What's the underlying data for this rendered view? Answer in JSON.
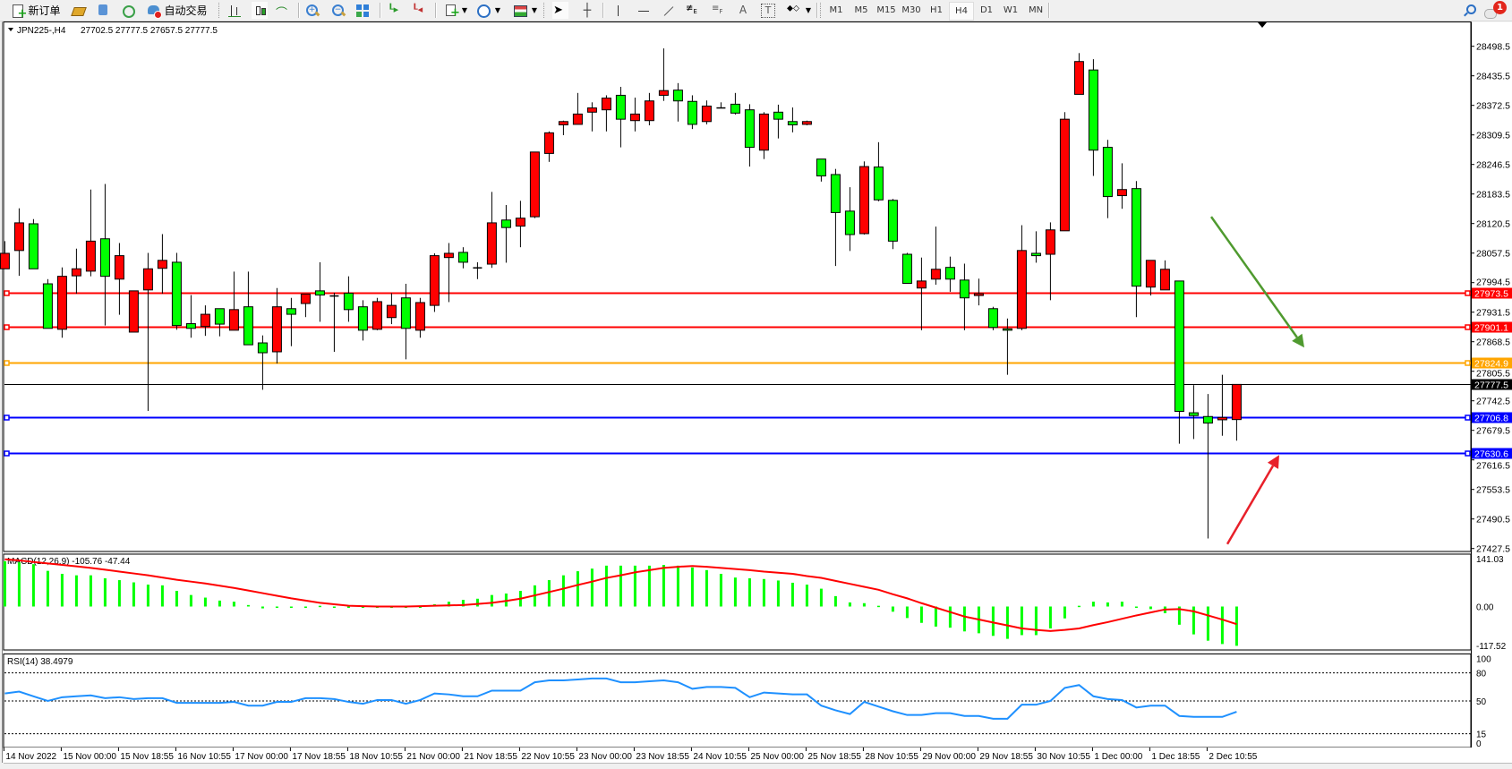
{
  "toolbar": {
    "new_order_label": "新订单",
    "auto_trading_label": "自动交易",
    "icons": [
      "new-order-icon",
      "market-watch-icon",
      "data-window-icon",
      "navigator-icon",
      "auto-trading-icon",
      "bar-chart-icon",
      "candlestick-chart-icon",
      "line-chart-icon",
      "zoom-in-icon",
      "zoom-out-icon",
      "tile-windows-icon",
      "chart-shift-icon",
      "auto-scroll-icon",
      "indicators-icon",
      "periods-icon",
      "templates-icon",
      "cursor-icon",
      "crosshair-icon",
      "vertical-line-icon",
      "horizontal-line-icon",
      "trendline-icon",
      "fibonacci-expansion-icon",
      "fibonacci-fan-icon",
      "text-icon",
      "text-label-icon",
      "arrows-icon",
      "search-icon",
      "notifications-icon"
    ],
    "periods": [
      "M1",
      "M5",
      "M15",
      "M30",
      "H1",
      "H4",
      "D1",
      "W1",
      "MN"
    ],
    "active_period": "H4"
  },
  "notifications": {
    "count": "1"
  },
  "chart": {
    "symbol_timeframe": "JPN225-,H4",
    "ohlc_readout": "27702.5 27777.5 27657.5 27777.5"
  },
  "colors": {
    "bull_candle": "#ff0000",
    "bear_candle": "#00ff00",
    "macd_histogram": "#00ff00",
    "macd_signal": "#ff0000",
    "rsi_line": "#1e90ff",
    "down_arrow": "#4f9a2f",
    "up_arrow": "#e8202a"
  },
  "chart_data": {
    "type": "candlestick",
    "price_axis_ticks": [
      "28498.5",
      "28435.5",
      "28372.5",
      "28309.5",
      "28246.5",
      "28183.5",
      "28120.5",
      "28057.5",
      "27994.5",
      "27931.5",
      "27868.5",
      "27805.5",
      "27742.5",
      "27679.5",
      "27616.5",
      "27553.5",
      "27490.5",
      "27427.5"
    ],
    "time_labels": [
      "14 Nov 2022",
      "15 Nov 00:00",
      "15 Nov 18:55",
      "16 Nov 10:55",
      "17 Nov 00:00",
      "17 Nov 18:55",
      "18 Nov 10:55",
      "21 Nov 00:00",
      "21 Nov 18:55",
      "22 Nov 10:55",
      "23 Nov 00:00",
      "23 Nov 18:55",
      "24 Nov 10:55",
      "25 Nov 00:00",
      "25 Nov 18:55",
      "28 Nov 10:55",
      "29 Nov 00:00",
      "29 Nov 18:55",
      "30 Nov 10:55",
      "1 Dec 00:00",
      "1 Dec 18:55",
      "2 Dec 10:55"
    ],
    "candles_ohlc": [
      [
        28024,
        28083,
        28024,
        28057
      ],
      [
        28063,
        28153,
        28009,
        28122
      ],
      [
        28120,
        28130,
        28024,
        28024
      ],
      [
        27992,
        28002,
        27897,
        27897
      ],
      [
        27895,
        28027,
        27877,
        28008
      ],
      [
        28009,
        28067,
        27971,
        28024
      ],
      [
        28019,
        28193,
        28008,
        28083
      ],
      [
        28088,
        28205,
        27903,
        28008
      ],
      [
        28002,
        28079,
        27926,
        28052
      ],
      [
        27889,
        27977,
        27889,
        27977
      ],
      [
        27979,
        28058,
        27721,
        28024
      ],
      [
        28025,
        28098,
        27971,
        28042
      ],
      [
        28038,
        28058,
        27894,
        27903
      ],
      [
        27907,
        27968,
        27877,
        27897
      ],
      [
        27901,
        27946,
        27881,
        27927
      ],
      [
        27939,
        27939,
        27880,
        27906
      ],
      [
        27893,
        28018,
        27893,
        27937
      ],
      [
        27943,
        28018,
        27862,
        27862
      ],
      [
        27866,
        27882,
        27766,
        27845
      ],
      [
        27847,
        27983,
        27822,
        27943
      ],
      [
        27939,
        27962,
        27859,
        27927
      ],
      [
        27950,
        27970,
        27921,
        27970
      ],
      [
        27977,
        28038,
        27911,
        27968
      ],
      [
        27966,
        27973,
        27847,
        27966
      ],
      [
        27972,
        28008,
        27911,
        27937
      ],
      [
        27943,
        27957,
        27871,
        27893
      ],
      [
        27895,
        27962,
        27893,
        27954
      ],
      [
        27920,
        27972,
        27906,
        27946
      ],
      [
        27962,
        27992,
        27831,
        27897
      ],
      [
        27893,
        27962,
        27877,
        27952
      ],
      [
        27946,
        28057,
        27932,
        28052
      ],
      [
        28048,
        28079,
        27953,
        28057
      ],
      [
        28059,
        28070,
        28025,
        28038
      ],
      [
        28026,
        28038,
        28002,
        28026
      ],
      [
        28034,
        28188,
        28026,
        28122
      ],
      [
        28128,
        28160,
        28037,
        28112
      ],
      [
        28115,
        28169,
        28070,
        28132
      ],
      [
        28135,
        28273,
        28132,
        28273
      ],
      [
        28270,
        28317,
        28252,
        28314
      ],
      [
        28331,
        28340,
        28309,
        28338
      ],
      [
        28332,
        28399,
        28332,
        28354
      ],
      [
        28358,
        28379,
        28317,
        28367
      ],
      [
        28363,
        28394,
        28317,
        28388
      ],
      [
        28394,
        28412,
        28283,
        28343
      ],
      [
        28340,
        28389,
        28317,
        28354
      ],
      [
        28340,
        28399,
        28330,
        28382
      ],
      [
        28394,
        28494,
        28382,
        28404
      ],
      [
        28405,
        28420,
        28338,
        28382
      ],
      [
        28381,
        28394,
        28322,
        28332
      ],
      [
        28338,
        28383,
        28332,
        28371
      ],
      [
        28367,
        28379,
        28367,
        28367
      ],
      [
        28375,
        28399,
        28353,
        28356
      ],
      [
        28363,
        28375,
        28242,
        28283
      ],
      [
        28277,
        28358,
        28258,
        28354
      ],
      [
        28358,
        28374,
        28302,
        28343
      ],
      [
        28338,
        28368,
        28315,
        28331
      ],
      [
        28332,
        28340,
        28330,
        28338
      ],
      [
        28258,
        28258,
        28210,
        28222
      ],
      [
        28225,
        28237,
        28030,
        28144
      ],
      [
        28147,
        28198,
        28062,
        28097
      ],
      [
        28099,
        28253,
        28097,
        28242
      ],
      [
        28241,
        28294,
        28168,
        28171
      ],
      [
        28170,
        28173,
        28066,
        28083
      ],
      [
        28055,
        28058,
        27993,
        27993
      ],
      [
        27983,
        28048,
        27893,
        27998
      ],
      [
        28002,
        28114,
        27990,
        28023
      ],
      [
        28027,
        28050,
        27975,
        28002
      ],
      [
        28000,
        28035,
        27893,
        27962
      ],
      [
        27967,
        28003,
        27946,
        27971
      ],
      [
        27939,
        27943,
        27893,
        27899
      ],
      [
        27896,
        27918,
        27798,
        27893
      ],
      [
        27897,
        28117,
        27893,
        28063
      ],
      [
        28057,
        28104,
        28037,
        28052
      ],
      [
        28055,
        28123,
        27957,
        28107
      ],
      [
        28105,
        28358,
        28105,
        28343
      ],
      [
        28396,
        28484,
        28396,
        28466
      ],
      [
        28448,
        28471,
        28222,
        28277
      ],
      [
        28283,
        28299,
        28132,
        28178
      ],
      [
        28180,
        28249,
        28152,
        28193
      ],
      [
        28195,
        28211,
        27921,
        27987
      ],
      [
        27985,
        28042,
        27967,
        28042
      ],
      [
        27979,
        28042,
        27979,
        28023
      ],
      [
        27998,
        27998,
        27651,
        27720
      ],
      [
        27717,
        27776,
        27661,
        27711
      ],
      [
        27709,
        27757,
        27449,
        27695
      ],
      [
        27702,
        27798,
        27668,
        27707
      ],
      [
        27702.5,
        27777.5,
        27657.5,
        27777.5
      ]
    ],
    "horizontal_lines": [
      {
        "price": 27973.5,
        "label": "27973.5",
        "color": "#ff0000"
      },
      {
        "price": 27901.1,
        "label": "27901.1",
        "color": "#ff0000"
      },
      {
        "price": 27824.9,
        "label": "27824.9",
        "color": "#ffa500"
      },
      {
        "price": 27706.8,
        "label": "27706.8",
        "color": "#0000ff"
      },
      {
        "price": 27630.6,
        "label": "27630.6",
        "color": "#0000ff"
      }
    ],
    "bid_line": {
      "price": 27777.5,
      "label": "27777.5",
      "color": "#000000"
    },
    "annotations": [
      {
        "type": "arrow",
        "direction": "down",
        "color": "#4f9a2f",
        "from_price": 28135,
        "to_price": 27856
      },
      {
        "type": "arrow",
        "direction": "up",
        "color": "#e8202a",
        "from_price": 27437,
        "to_price": 27627
      }
    ],
    "macd": {
      "label": "MACD(12,26,9) -105.76 -47.44",
      "axis_labels": [
        "141.03",
        "0.00",
        "-117.52"
      ],
      "range": [
        -117.52,
        141.03
      ],
      "histogram": [
        122,
        119,
        114,
        96,
        88,
        84,
        84,
        76,
        71,
        65,
        59,
        57,
        42,
        31,
        24,
        16,
        13,
        4,
        -5,
        -2,
        -2,
        -2,
        2,
        0,
        -1,
        -2,
        0,
        0,
        -2,
        -2,
        6,
        13,
        18,
        21,
        31,
        35,
        42,
        57,
        71,
        84,
        95,
        102,
        110,
        110,
        110,
        110,
        112,
        110,
        105,
        98,
        88,
        78,
        76,
        74,
        70,
        64,
        59,
        48,
        28,
        11,
        9,
        2,
        -14,
        -31,
        -44,
        -54,
        -57,
        -67,
        -72,
        -79,
        -87,
        -77,
        -77,
        -59,
        -32,
        2,
        13,
        11,
        13,
        -2,
        -7,
        -18,
        -49,
        -75,
        -92,
        -101,
        -105.76
      ],
      "signal": [
        127,
        124,
        120,
        116,
        112,
        108,
        104,
        99,
        94,
        89,
        84,
        78,
        72,
        67,
        62,
        56,
        50,
        43,
        36,
        29,
        22,
        16,
        10,
        6,
        2,
        1,
        0,
        0,
        0,
        1,
        2,
        3,
        4,
        7,
        10,
        15,
        21,
        30,
        39,
        48,
        58,
        67,
        77,
        84,
        92,
        98,
        104,
        107,
        109,
        107,
        104,
        101,
        98,
        94,
        91,
        88,
        82,
        77,
        69,
        61,
        53,
        45,
        33,
        22,
        9,
        -3,
        -15,
        -27,
        -35,
        -43,
        -51,
        -59,
        -63,
        -66,
        -63,
        -59,
        -50,
        -42,
        -33,
        -24,
        -16,
        -8,
        -7,
        -13,
        -24,
        -35,
        -47.44
      ]
    },
    "rsi": {
      "label": "RSI(14) 38.4979",
      "axis_labels": [
        "100",
        "80",
        "50",
        "15",
        "0"
      ],
      "levels": [
        80,
        50,
        15
      ],
      "range": [
        0,
        100
      ],
      "values": [
        58,
        60,
        55,
        50,
        54,
        55,
        56,
        53,
        54,
        52,
        53,
        53,
        48,
        48,
        48,
        48,
        49,
        45,
        45,
        49,
        49,
        53,
        53,
        52,
        49,
        47,
        51,
        51,
        47,
        51,
        58,
        57,
        55,
        55,
        61,
        61,
        61,
        70,
        72,
        72,
        73,
        74,
        74,
        70,
        70,
        71,
        72,
        70,
        63,
        65,
        65,
        64,
        54,
        59,
        58,
        57,
        57,
        45,
        40,
        36,
        49,
        44,
        39,
        35,
        35,
        37,
        37,
        34,
        34,
        31,
        31,
        46,
        46,
        50,
        64,
        67,
        55,
        52,
        51,
        43,
        45,
        45,
        34,
        33,
        33,
        33,
        38.4979
      ]
    }
  }
}
